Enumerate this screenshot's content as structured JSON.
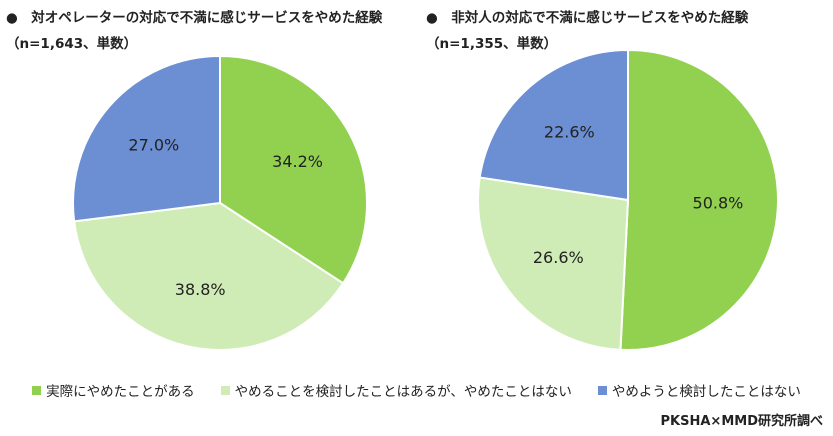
{
  "colors": {
    "actually_quit": "#92d050",
    "considered_not_quit": "#d0ecb6",
    "considered_quit_not": "#6b8fd2"
  },
  "legend": [
    {
      "label": "実際にやめたことがある",
      "color": "#92d050"
    },
    {
      "label": "やめることを検討したことはあるが、やめたことはない",
      "color": "#d0ecb6"
    },
    {
      "label": "やめようと検討したことはない",
      "color": "#6b8fd2"
    }
  ],
  "credit": "PKSHA×MMD研究所調べ",
  "chart_data": [
    {
      "type": "pie",
      "title": "●　対オペレーターの対応で不満に感じサービスをやめた経験",
      "subtitle": "（n=1,643、単数）",
      "series": [
        {
          "name": "実際にやめたことがある",
          "value": 34.2,
          "label": "34.2%",
          "color": "#92d050"
        },
        {
          "name": "やめることを検討したことはあるが、やめたことはない",
          "value": 38.8,
          "label": "38.8%",
          "color": "#d0ecb6"
        },
        {
          "name": "やめようと検討したことはない",
          "value": 27.0,
          "label": "27.0%",
          "color": "#6b8fd2"
        }
      ]
    },
    {
      "type": "pie",
      "title": "●　非対人の対応で不満に感じサービスをやめた経験",
      "subtitle": "（n=1,355、単数）",
      "series": [
        {
          "name": "実際にやめたことがある",
          "value": 50.8,
          "label": "50.8%",
          "color": "#92d050"
        },
        {
          "name": "やめることを検討したことはあるが、やめたことはない",
          "value": 26.6,
          "label": "26.6%",
          "color": "#d0ecb6"
        },
        {
          "name": "やめようと検討したことはない",
          "value": 22.6,
          "label": "22.6%",
          "color": "#6b8fd2"
        }
      ]
    }
  ]
}
